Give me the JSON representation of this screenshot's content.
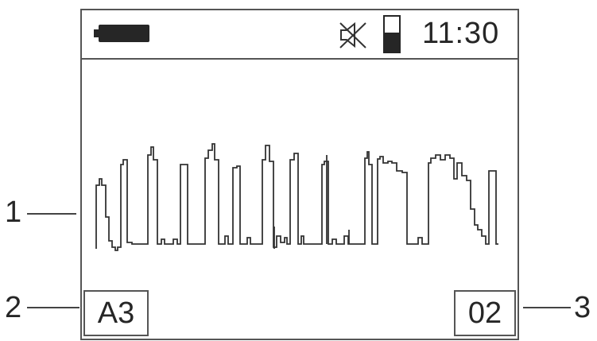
{
  "status_bar": {
    "battery_icon": "battery-full-icon",
    "mute_icon": "speaker-muted-icon",
    "signal_icon": "signal-level-icon",
    "signal_level": 0.55,
    "time": "11:30"
  },
  "footer": {
    "channel": "A3",
    "index": "02"
  },
  "callouts": {
    "waveform": "1",
    "channel": "2",
    "index": "3"
  },
  "colors": {
    "ink": "#262626",
    "frame": "#555555",
    "background": "#ffffff"
  }
}
